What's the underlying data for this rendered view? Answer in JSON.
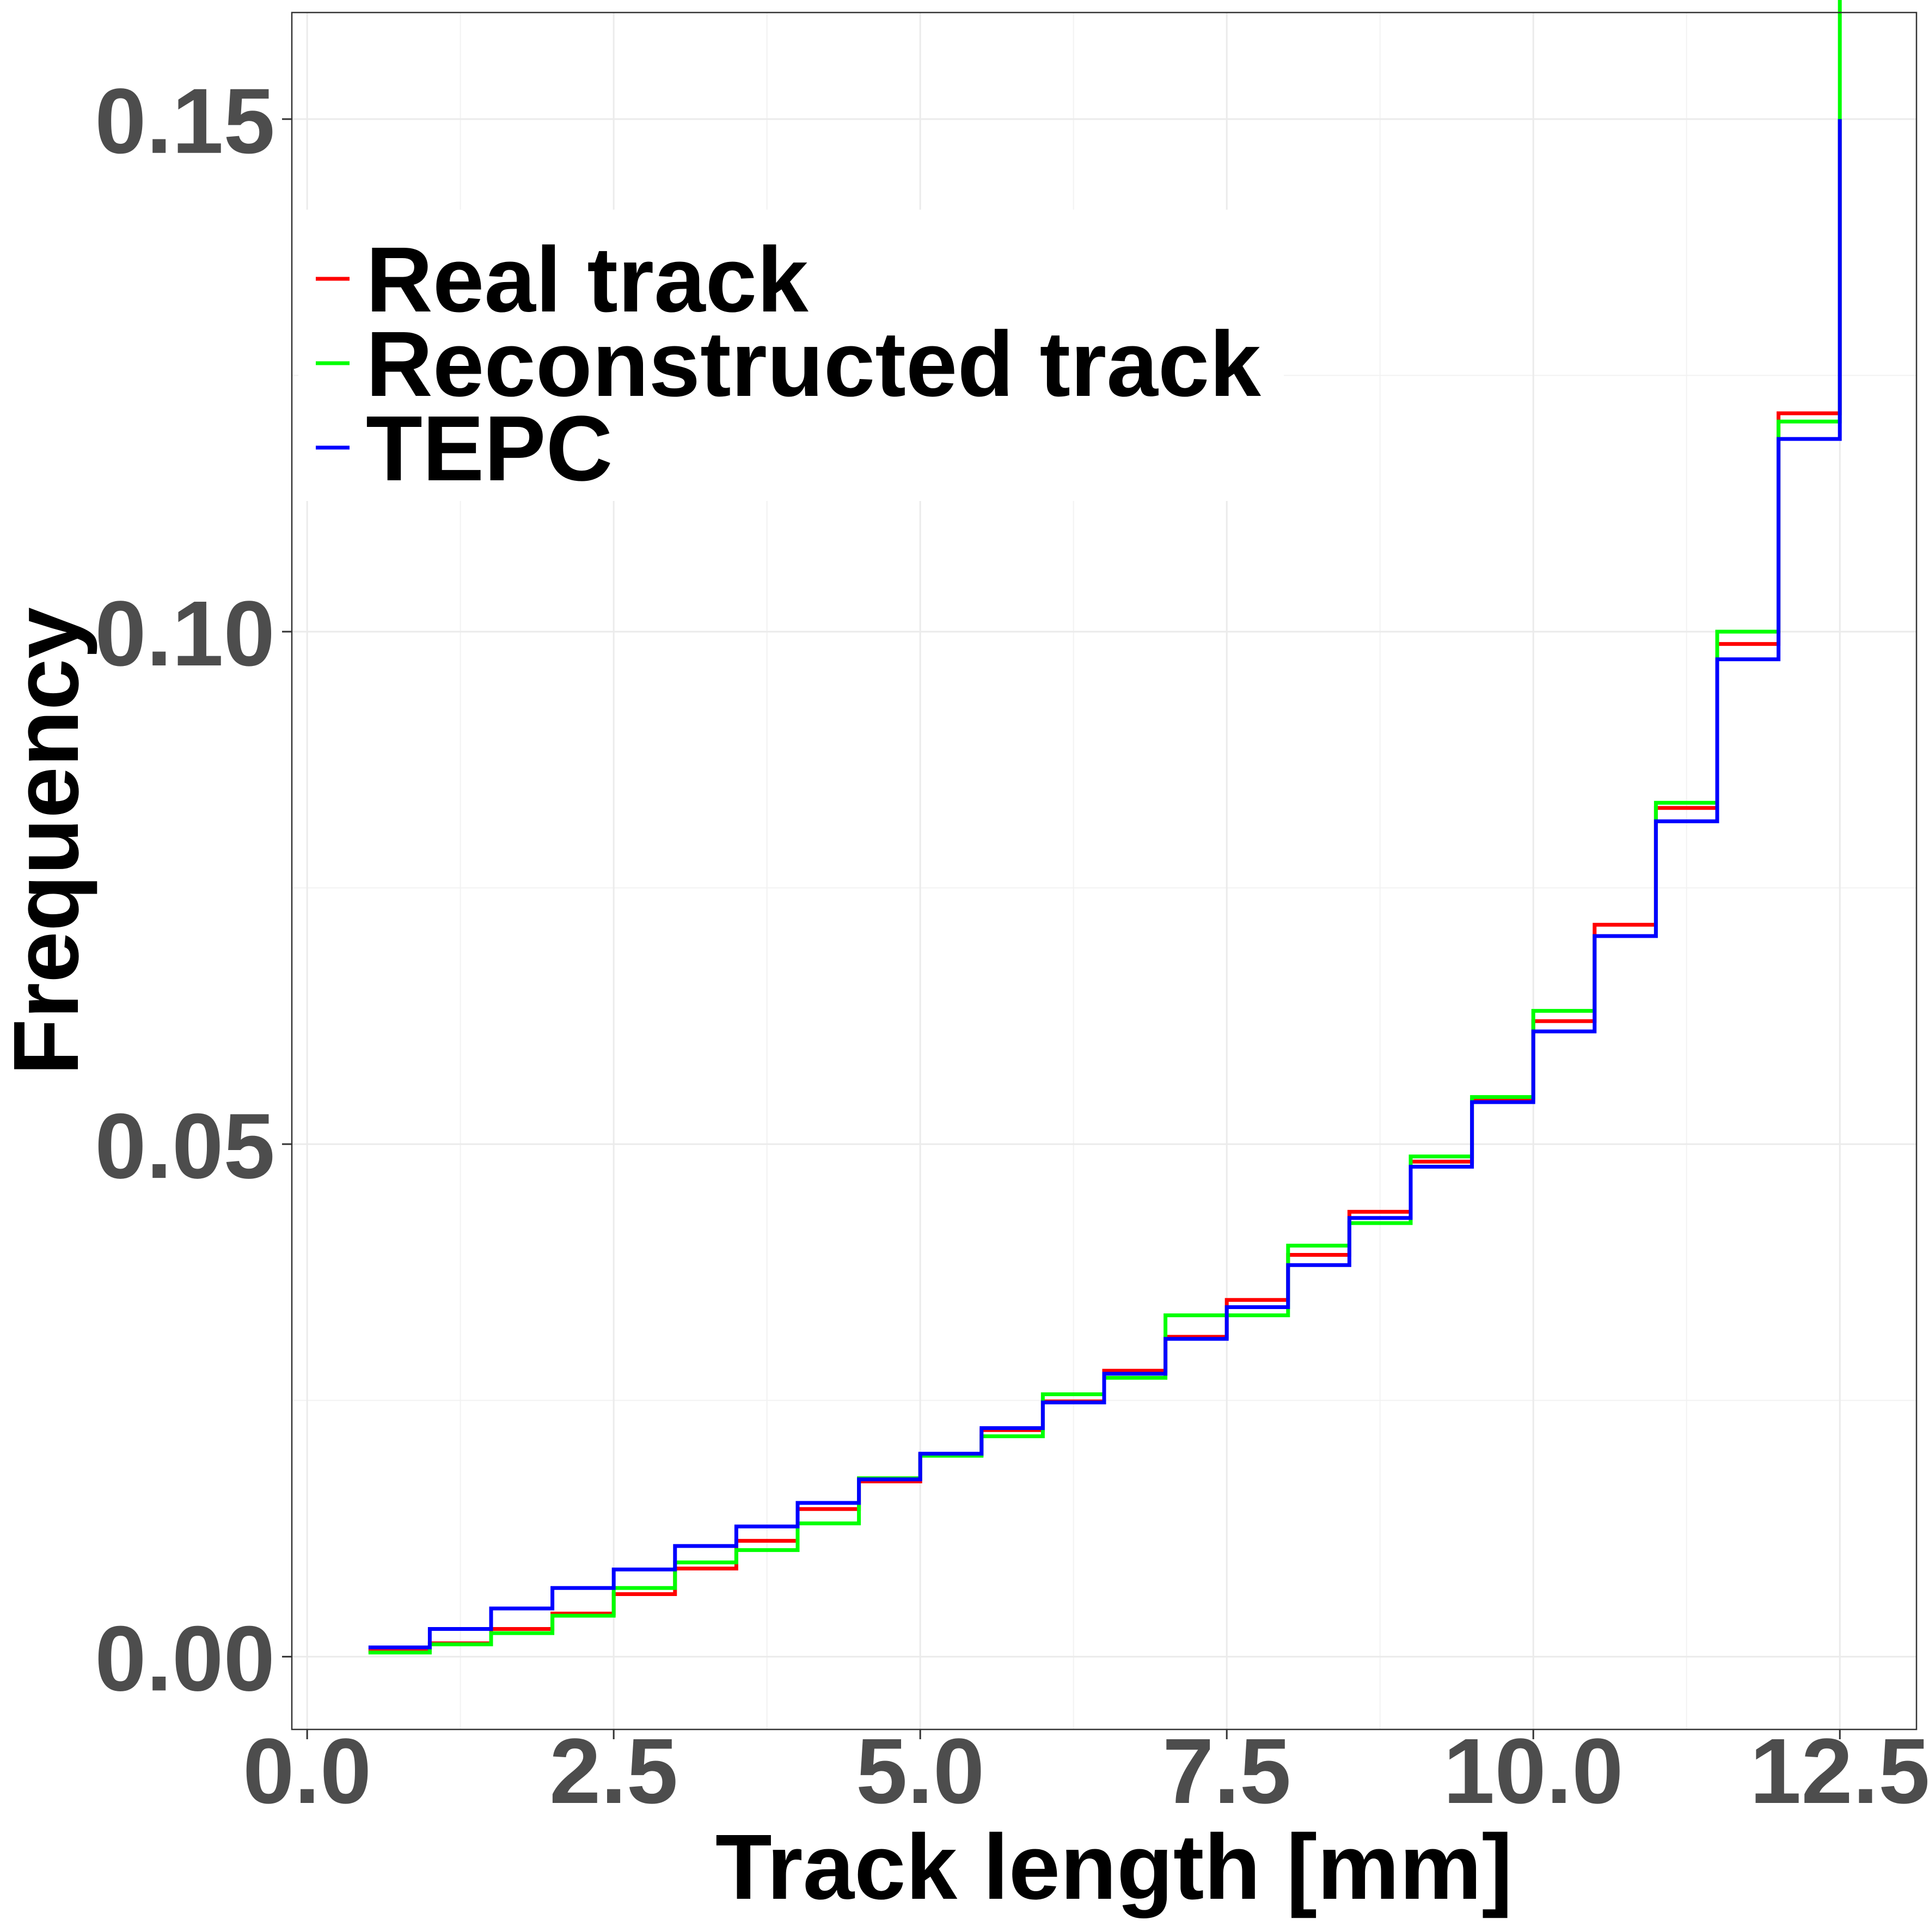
{
  "chart_data": {
    "type": "line",
    "step": true,
    "title": "",
    "xlabel": "Track length [mm]",
    "ylabel": "Frequency",
    "xlim": [
      -0.125,
      13.125
    ],
    "ylim": [
      -0.0071,
      0.1604
    ],
    "x_ticks": [
      0.0,
      2.5,
      5.0,
      7.5,
      10.0,
      12.5
    ],
    "x_tick_labels": [
      "0.0",
      "2.5",
      "5.0",
      "7.5",
      "10.0",
      "12.5"
    ],
    "y_ticks": [
      0.0,
      0.05,
      0.1,
      0.15
    ],
    "y_tick_labels": [
      "0.00",
      "0.05",
      "0.10",
      "0.15"
    ],
    "grid": true,
    "legend_position": "top-left",
    "x": [
      0.5,
      1.0,
      1.5,
      2.0,
      2.5,
      3.0,
      3.5,
      4.0,
      4.5,
      5.0,
      5.5,
      6.0,
      6.5,
      7.0,
      7.5,
      8.0,
      8.5,
      9.0,
      9.5,
      10.0,
      10.5,
      11.0,
      11.5,
      12.0,
      12.5
    ],
    "series": [
      {
        "name": "Real track",
        "color": "#ff0000",
        "values": [
          0.0006,
          0.0013,
          0.0027,
          0.0042,
          0.0061,
          0.0086,
          0.0113,
          0.0144,
          0.0171,
          0.0197,
          0.0221,
          0.0249,
          0.0279,
          0.0312,
          0.0348,
          0.0392,
          0.0434,
          0.0483,
          0.0543,
          0.062,
          0.0714,
          0.0828,
          0.0988,
          0.1213,
          0.15
        ]
      },
      {
        "name": "Reconstructed track",
        "color": "#00ff00",
        "values": [
          0.0004,
          0.0012,
          0.0023,
          0.004,
          0.0067,
          0.0092,
          0.0104,
          0.013,
          0.0174,
          0.0196,
          0.0215,
          0.0256,
          0.0272,
          0.0333,
          0.0333,
          0.0401,
          0.0423,
          0.0488,
          0.0546,
          0.063,
          0.0703,
          0.0833,
          0.1,
          0.1205,
          0.1635
        ]
      },
      {
        "name": "TEPC",
        "color": "#0000ff",
        "values": [
          0.0009,
          0.0027,
          0.0047,
          0.0067,
          0.0085,
          0.0108,
          0.0127,
          0.015,
          0.0173,
          0.0198,
          0.0223,
          0.0248,
          0.0276,
          0.031,
          0.0341,
          0.0382,
          0.0428,
          0.0478,
          0.0541,
          0.061,
          0.0703,
          0.0815,
          0.0973,
          0.1188,
          0.15
        ]
      }
    ],
    "legend": {
      "entries": [
        "Real track",
        "Reconstructed track",
        "TEPC"
      ]
    }
  }
}
